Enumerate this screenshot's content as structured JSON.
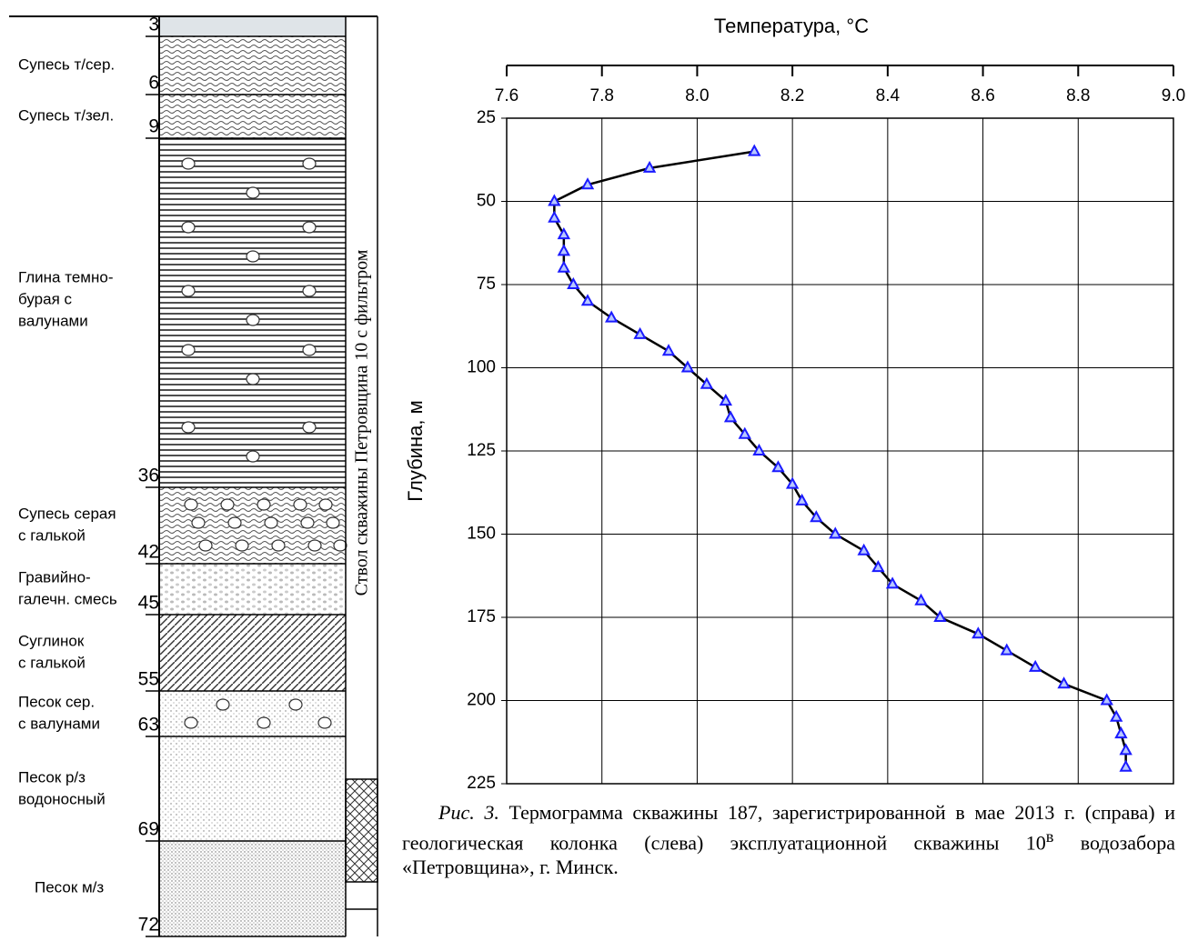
{
  "chart_data": {
    "type": "line",
    "title": "Температура, °C",
    "y_label": "Глубина, м",
    "x": [
      8.12,
      7.9,
      7.77,
      7.7,
      7.7,
      7.72,
      7.72,
      7.72,
      7.74,
      7.77,
      7.82,
      7.88,
      7.94,
      7.98,
      8.02,
      8.06,
      8.07,
      8.1,
      8.13,
      8.17,
      8.2,
      8.22,
      8.25,
      8.29,
      8.35,
      8.38,
      8.41,
      8.47,
      8.51,
      8.59,
      8.65,
      8.71,
      8.77,
      8.86,
      8.88,
      8.89,
      8.9,
      8.9
    ],
    "values": [
      35,
      40,
      45,
      50,
      55,
      60,
      65,
      70,
      75,
      80,
      85,
      90,
      95,
      100,
      105,
      110,
      115,
      120,
      125,
      130,
      135,
      140,
      145,
      150,
      155,
      160,
      165,
      170,
      175,
      180,
      185,
      190,
      195,
      200,
      205,
      210,
      215,
      220
    ],
    "xlim": [
      7.6,
      9.0
    ],
    "xticks": [
      7.6,
      7.8,
      {
        "value": 8,
        "label": "8.0"
      },
      8.2,
      8.4,
      8.6,
      8.8,
      {
        "value": 9,
        "label": "9.0"
      }
    ],
    "ylim": [
      25,
      225
    ],
    "yticks": [
      25,
      50,
      75,
      100,
      125,
      150,
      175,
      200,
      225
    ],
    "y_inverted": true,
    "x_axis_position": "top",
    "grid": true,
    "line_color": "#000000",
    "marker_color": "#1a1aff"
  },
  "column": {
    "borehole_label": "Ствол скважины Петровщина 10 с фильтром",
    "depths": [
      3,
      6,
      9,
      36,
      42,
      45,
      55,
      63,
      69,
      72
    ],
    "layers": [
      {
        "name": [
          "Супесь т/сер."
        ]
      },
      {
        "name": [
          "Супесь т/зел."
        ]
      },
      {
        "name": [
          "Глина темно-",
          "бурая с",
          "валунами"
        ]
      },
      {
        "name": [
          "Супесь серая",
          "с галькой"
        ]
      },
      {
        "name": [
          "Гравийно-",
          "галечн. смесь"
        ]
      },
      {
        "name": [
          "Суглинок",
          "с галькой"
        ]
      },
      {
        "name": [
          "Песок сер.",
          "с валунами"
        ]
      },
      {
        "name": [
          "Песок р/з",
          "водоносный"
        ]
      },
      {
        "name": [
          "Песок м/з"
        ]
      }
    ]
  },
  "caption": {
    "label": "Рис. 3.",
    "text": "Термограмма скважины 187, зарегистрированной в мае 2013 г. (справа) и геологическая колонка (слева) эксплуатационной скважины 10",
    "sup": "в",
    "text_end": " водозабора «Петровщина», г. Минск."
  }
}
